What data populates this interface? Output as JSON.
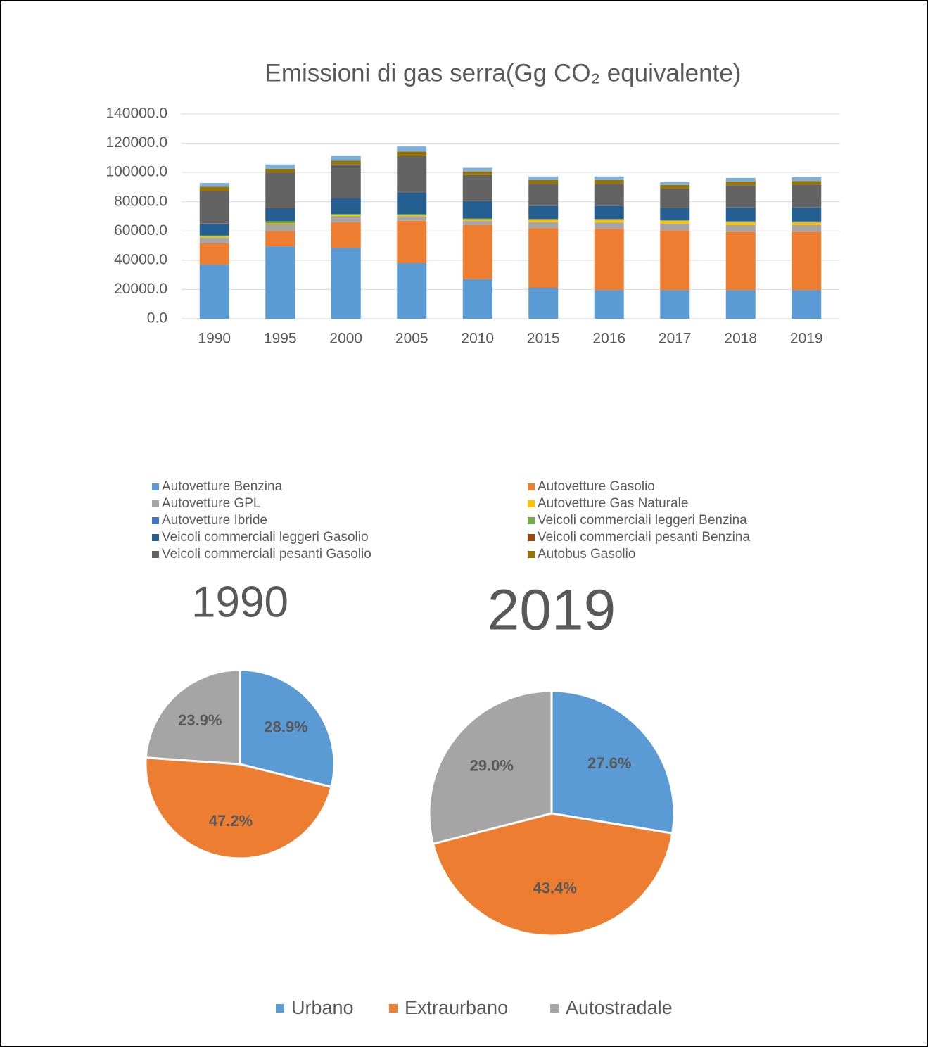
{
  "chart_data": [
    {
      "type": "bar",
      "stacked": true,
      "title": "Emissioni di gas serra(Gg CO₂ equivalente)",
      "categories": [
        "1990",
        "1995",
        "2000",
        "2005",
        "2010",
        "2015",
        "2016",
        "2017",
        "2018",
        "2019"
      ],
      "series": [
        {
          "name": "Autovetture Benzina",
          "color": "#5b9bd5",
          "values": [
            37000,
            49500,
            48500,
            38000,
            27000,
            21000,
            19500,
            19500,
            19500,
            19500
          ]
        },
        {
          "name": "Autovetture Gasolio",
          "color": "#ed7d31",
          "values": [
            14500,
            10500,
            17500,
            29000,
            37000,
            41000,
            42000,
            41000,
            40000,
            40000
          ]
        },
        {
          "name": "Autovetture GPL",
          "color": "#a5a5a5",
          "values": [
            4000,
            4500,
            4000,
            3000,
            3000,
            4000,
            4200,
            4500,
            4500,
            4500
          ]
        },
        {
          "name": "Autovetture Gas Naturale",
          "color": "#ffc000",
          "values": [
            700,
            700,
            700,
            700,
            1000,
            1800,
            2000,
            2000,
            2000,
            1800
          ]
        },
        {
          "name": "Autovetture Ibride",
          "color": "#4472c4",
          "values": [
            0,
            0,
            0,
            0,
            0,
            100,
            200,
            300,
            400,
            500
          ]
        },
        {
          "name": "Veicoli commerciali leggeri Benzina",
          "color": "#70ad47",
          "values": [
            800,
            1500,
            1000,
            800,
            500,
            300,
            300,
            300,
            300,
            300
          ]
        },
        {
          "name": "Veicoli commerciali leggeri Gasolio",
          "color": "#255e91",
          "values": [
            8000,
            9000,
            11000,
            15000,
            12000,
            9000,
            9000,
            8000,
            9500,
            9500
          ]
        },
        {
          "name": "Veicoli commerciali pesanti Benzina",
          "color": "#9e480e",
          "values": [
            300,
            300,
            300,
            300,
            200,
            100,
            100,
            100,
            100,
            100
          ]
        },
        {
          "name": "Veicoli commerciali pesanti Gasolio",
          "color": "#636363",
          "values": [
            22000,
            24000,
            22500,
            24500,
            17500,
            15000,
            15000,
            13500,
            15000,
            15500
          ]
        },
        {
          "name": "Autobus Gasolio",
          "color": "#997300",
          "values": [
            3000,
            2500,
            2500,
            3000,
            2500,
            2500,
            2500,
            2300,
            2500,
            2500
          ]
        },
        {
          "color": "#7cafdd",
          "values": [
            2500,
            3000,
            3500,
            3500,
            2500,
            2500,
            2500,
            2000,
            2500,
            2500
          ]
        }
      ],
      "ylim": [
        0,
        140000
      ],
      "yticks": [
        {
          "value": 0,
          "label": "0.0"
        },
        {
          "value": 20000,
          "label": "20000.0"
        },
        {
          "value": 40000,
          "label": "40000.0"
        },
        {
          "value": 60000,
          "label": "60000.0"
        },
        {
          "value": 80000,
          "label": "80000.0"
        },
        {
          "value": 100000,
          "label": "100000.0"
        },
        {
          "value": 120000,
          "label": "120000.0"
        },
        {
          "value": 140000,
          "label": "140000.0"
        }
      ],
      "grid": true,
      "legend": "bottom"
    },
    {
      "type": "pie",
      "title": "1990",
      "categories": [
        "Urbano",
        "Extraurbano",
        "Autostradale"
      ],
      "colors": [
        "#5b9bd5",
        "#ed7d31",
        "#a5a5a5"
      ],
      "values": [
        28.9,
        47.2,
        23.9
      ],
      "value_labels": [
        "28.9%",
        "47.2%",
        "23.9%"
      ]
    },
    {
      "type": "pie",
      "title": "2019",
      "categories": [
        "Urbano",
        "Extraurbano",
        "Autostradale"
      ],
      "colors": [
        "#5b9bd5",
        "#ed7d31",
        "#a5a5a5"
      ],
      "values": [
        27.6,
        43.4,
        29.0
      ],
      "value_labels": [
        "27.6%",
        "43.4%",
        "29.0%"
      ],
      "legend": "bottom"
    }
  ]
}
